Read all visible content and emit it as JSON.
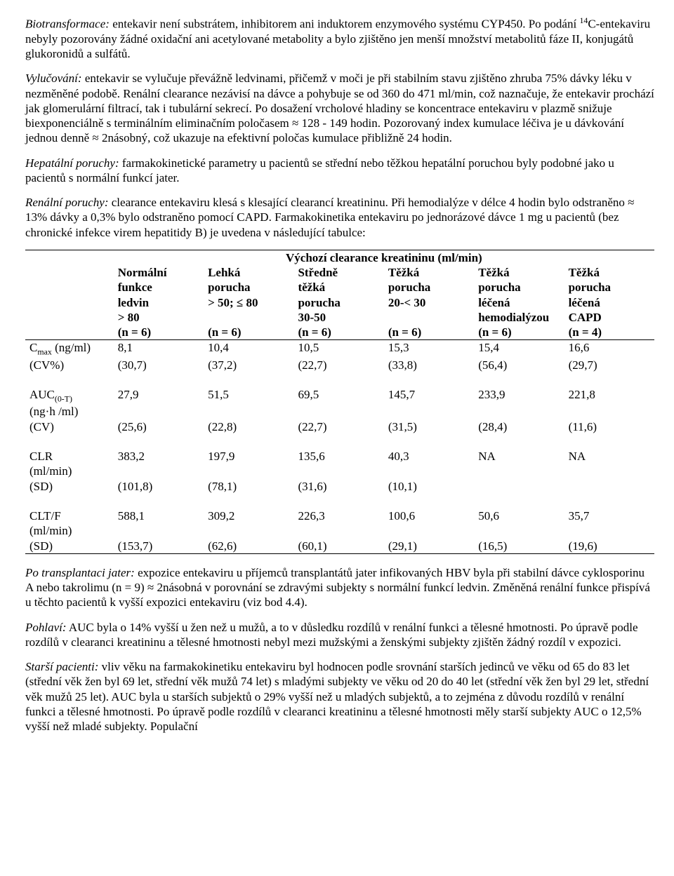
{
  "p1": {
    "a": "Biotransformace:",
    "b": " entekavir není substrátem, inhibitorem ani induktorem enzymového systému CYP450. Po podání ",
    "c": "14",
    "d": "C-entekaviru nebyly pozorovány žádné oxidační ani acetylované metabolity a bylo zjištěno jen menší množství metabolitů fáze II, konjugátů glukoronidů a sulfátů."
  },
  "p2": {
    "a": "Vylučování:",
    "b": " entekavir se vylučuje převážně ledvinami, přičemž v moči je při stabilním stavu zjištěno zhruba 75% dávky léku v nezměněné podobě. Renální clearance nezávisí na dávce a pohybuje se od 360 do 471 ml/min, což naznačuje, že entekavir prochází jak glomerulární filtrací, tak i tubulární sekrecí. Po dosažení vrcholové hladiny se koncentrace entekaviru v plazmě snižuje biexponenciálně s terminálním eliminačním poločasem ≈ 128 - 149 hodin. Pozorovaný index kumulace léčiva je u dávkování jednou denně ≈ 2násobný, což ukazuje na efektivní poločas kumulace přibližně 24 hodin."
  },
  "p3": {
    "a": "Hepatální poruchy:",
    "b": " farmakokinetické parametry u pacientů se střední nebo těžkou hepatální poruchou byly podobné jako u pacientů s normální funkcí jater."
  },
  "p4": {
    "a": "Renální poruchy:",
    "b": " clearance entekaviru klesá s klesající clearancí kreatininu. Při hemodialýze v délce 4 hodin bylo odstraněno ≈ 13% dávky a 0,3% bylo odstraněno pomocí CAPD. Farmakokinetika entekaviru po jednorázové dávce 1 mg u pacientů (bez chronické infekce virem hepatitidy B) je uvedena v následující tabulce:"
  },
  "table": {
    "head_title": "Výchozí clearance kreatininu (ml/min)",
    "cols": [
      [
        "Normální",
        "funkce",
        "ledvin",
        "> 80",
        "(n = 6)"
      ],
      [
        "Lehká",
        "porucha",
        "> 50; ≤ 80",
        "",
        "(n = 6)"
      ],
      [
        "Středně",
        "těžká",
        "porucha",
        "30-50",
        "(n = 6)"
      ],
      [
        "Těžká",
        "porucha",
        "20-< 30",
        "",
        "(n = 6)"
      ],
      [
        "Těžká",
        "porucha",
        "léčená",
        "hemodialýzou",
        "(n = 6)"
      ],
      [
        "Těžká",
        "porucha",
        "léčená",
        "CAPD",
        "(n = 4)"
      ]
    ],
    "rows": [
      {
        "label_a": "C",
        "label_sub": "max",
        "label_b": " (ng/ml)",
        "label2": "(CV%)",
        "v": [
          "8,1",
          "10,4",
          "10,5",
          "15,3",
          "15,4",
          "16,6"
        ],
        "w": [
          "(30,7)",
          "(37,2)",
          "(22,7)",
          "(33,8)",
          "(56,4)",
          "(29,7)"
        ]
      },
      {
        "label_a": "AUC",
        "label_sub": "(0-T)",
        "label_b": "",
        "label2": "(ng·h /ml)",
        "label3": "(CV)",
        "v": [
          "27,9",
          "51,5",
          "69,5",
          "145,7",
          "233,9",
          "221,8"
        ],
        "w": [
          "(25,6)",
          "(22,8)",
          "(22,7)",
          "(31,5)",
          "(28,4)",
          "(11,6)"
        ]
      },
      {
        "label_a": "CLR",
        "label_b": "",
        "label2": "(ml/min)",
        "label3": "(SD)",
        "v": [
          "383,2",
          "197,9",
          "135,6",
          "40,3",
          "NA",
          "NA"
        ],
        "w": [
          "(101,8)",
          "(78,1)",
          "(31,6)",
          "(10,1)",
          "",
          ""
        ]
      },
      {
        "label_a": "CLT/F",
        "label_b": "",
        "label2": "(ml/min)",
        "label3": "(SD)",
        "v": [
          "588,1",
          "309,2",
          "226,3",
          "100,6",
          "50,6",
          "35,7"
        ],
        "w": [
          "(153,7)",
          "(62,6)",
          "(60,1)",
          "(29,1)",
          "(16,5)",
          "(19,6)"
        ]
      }
    ]
  },
  "p5": {
    "a": "Po transplantaci jater:",
    "b": " expozice entekaviru u příjemců transplantátů jater infikovaných HBV byla při stabilní dávce cyklosporinu A nebo takrolimu (n = 9) ≈ 2násobná v porovnání se zdravými subjekty s normální funkcí ledvin. Změněná renální funkce přispívá u těchto pacientů k vyšší expozici entekaviru (viz bod 4.4)."
  },
  "p6": {
    "a": "Pohlaví:",
    "b": " AUC byla o 14% vyšší u žen než u mužů, a to v důsledku rozdílů v renální funkci a tělesné hmotnosti. Po úpravě podle rozdílů v clearanci kreatininu a tělesné hmotnosti nebyl mezi mužskými a ženskými subjekty zjištěn žádný rozdíl v expozici."
  },
  "p7": {
    "a": "Starší pacienti:",
    "b": " vliv věku na farmakokinetiku entekaviru byl hodnocen podle srovnání starších jedinců ve věku od 65 do 83 let (střední věk žen byl 69 let, střední věk mužů 74 let) s mladými subjekty ve věku od 20 do 40 let (střední věk žen byl 29 let, střední věk mužů 25 let). AUC byla u starších subjektů o 29% vyšší než u mladých subjektů, a to zejména z důvodu rozdílů v renální funkci a tělesné hmotnosti. Po úpravě podle rozdílů v clearanci kreatininu a tělesné hmotnosti měly starší subjekty AUC o 12,5% vyšší než mladé subjekty. Populační"
  }
}
